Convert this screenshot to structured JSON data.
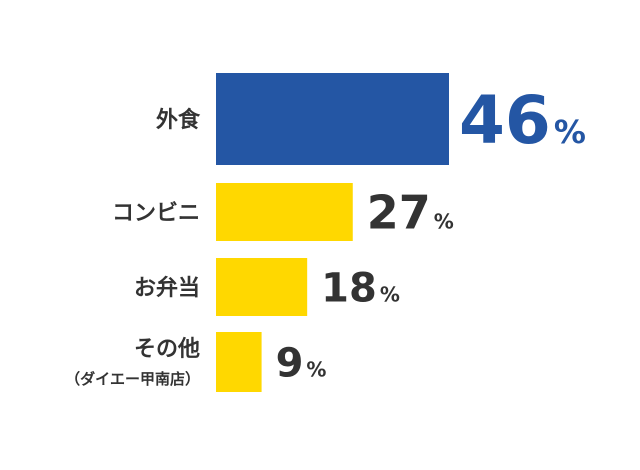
{
  "chart_data": {
    "type": "bar",
    "orientation": "horizontal",
    "categories": [
      "外食",
      "コンビニ",
      "お弁当",
      "その他"
    ],
    "category_notes": [
      "",
      "",
      "",
      "（ダイエー甲南店）"
    ],
    "values": [
      46,
      27,
      18,
      9
    ],
    "unit": "%",
    "xlim": [
      0,
      46
    ],
    "grid": false,
    "legend": "none",
    "highlight_index": 0
  },
  "colors": {
    "highlight_bar": "#2456a4",
    "highlight_text": "#2456a4",
    "bar": "#ffd800",
    "text": "#333333",
    "background": "#ffffff"
  }
}
